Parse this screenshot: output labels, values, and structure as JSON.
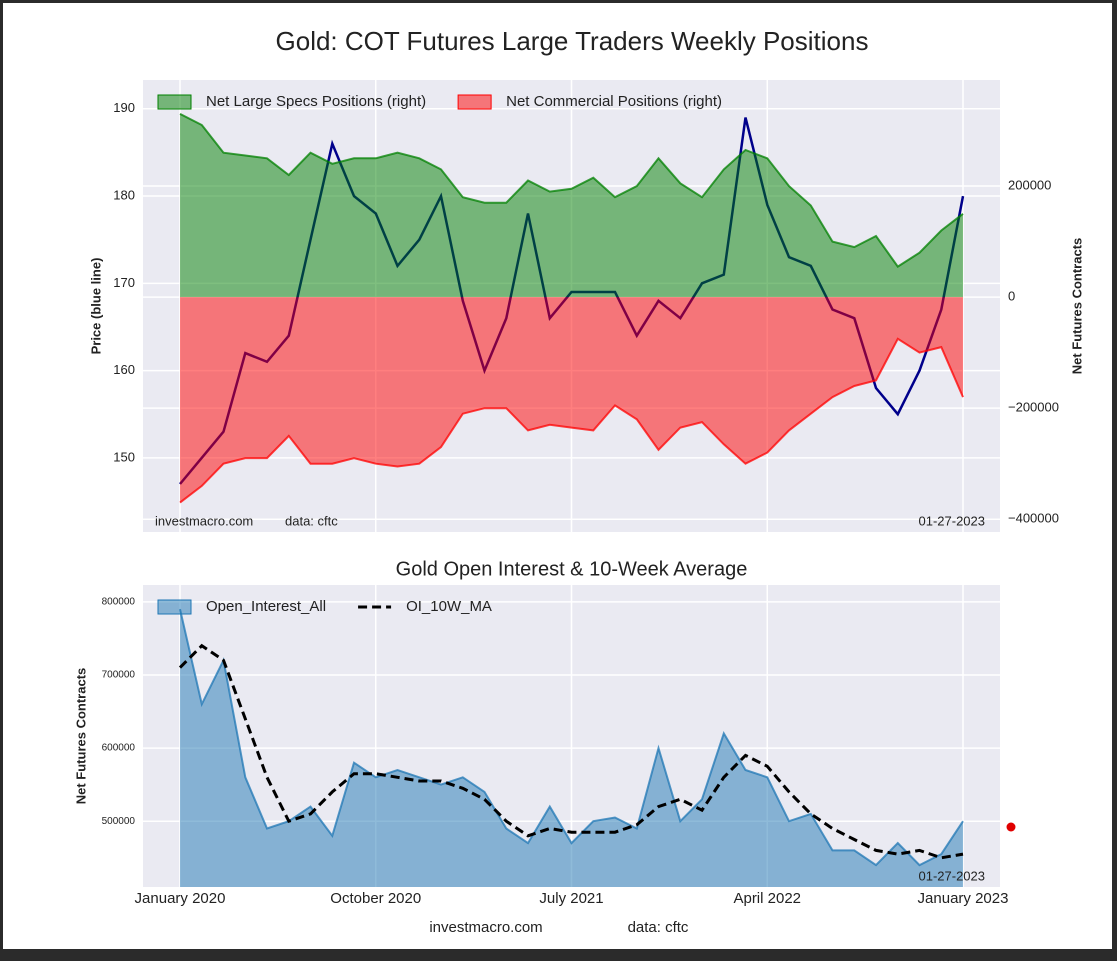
{
  "title": "Gold: COT Futures Large Traders Weekly Positions",
  "footer": {
    "site": "investmacro.com",
    "source": "data: cftc"
  },
  "chart_data": [
    {
      "type": "area",
      "x": [
        "2020-01",
        "2020-02",
        "2020-03",
        "2020-04",
        "2020-05",
        "2020-06",
        "2020-07",
        "2020-08",
        "2020-09",
        "2020-10",
        "2020-11",
        "2020-12",
        "2021-01",
        "2021-02",
        "2021-03",
        "2021-04",
        "2021-05",
        "2021-06",
        "2021-07",
        "2021-08",
        "2021-09",
        "2021-10",
        "2021-11",
        "2021-12",
        "2022-01",
        "2022-02",
        "2022-03",
        "2022-04",
        "2022-05",
        "2022-06",
        "2022-07",
        "2022-08",
        "2022-09",
        "2022-10",
        "2022-11",
        "2022-12",
        "2023-01"
      ],
      "ylabel": "Price (blue line)",
      "y2label": "Net Futures Contracts",
      "annotations": [
        "investmacro.com",
        "data: cftc",
        "01-27-2023"
      ],
      "ylim": [
        141.5,
        193.3
      ],
      "yticks": [
        150,
        160,
        170,
        180,
        190
      ],
      "y2lim": [
        -423000,
        391000
      ],
      "y2ticks": [
        {
          "value": -400000,
          "label": "−400000"
        },
        {
          "value": -200000,
          "label": "−200000"
        },
        0,
        200000
      ],
      "grid": true,
      "legend": "upper left",
      "xticks": [
        {
          "value": "2020-01",
          "label": "January 2020"
        },
        {
          "value": "2020-10",
          "label": "October 2020"
        },
        {
          "value": "2021-07",
          "label": "July 2021"
        },
        {
          "value": "2022-04",
          "label": "April 2022"
        },
        {
          "value": "2023-01",
          "label": "January 2023"
        }
      ],
      "series": [
        {
          "style": "line",
          "color": "#00008b",
          "axis": "y",
          "values": [
            147,
            150,
            153,
            162,
            161,
            164,
            175,
            186,
            180,
            178,
            172,
            175,
            180,
            168,
            160,
            166,
            178,
            166,
            169,
            169,
            169,
            164,
            168,
            166,
            170,
            171,
            189,
            179,
            173,
            172,
            167,
            166,
            158,
            155,
            160,
            167,
            180
          ]
        },
        {
          "name": "Net Large Specs Positions (right)",
          "style": "area",
          "color": "#008000",
          "axis": "y2",
          "values": [
            330000,
            310000,
            260000,
            255000,
            250000,
            220000,
            260000,
            240000,
            250000,
            250000,
            260000,
            250000,
            230000,
            180000,
            170000,
            170000,
            210000,
            190000,
            195000,
            215000,
            180000,
            200000,
            250000,
            205000,
            180000,
            230000,
            265000,
            250000,
            200000,
            165000,
            100000,
            90000,
            110000,
            55000,
            80000,
            120000,
            150000
          ]
        },
        {
          "name": "Net Commercial Positions (right)",
          "style": "area",
          "color": "#ff0000",
          "axis": "y2",
          "values": [
            -370000,
            -340000,
            -300000,
            -290000,
            -290000,
            -250000,
            -300000,
            -300000,
            -290000,
            -300000,
            -305000,
            -300000,
            -270000,
            -210000,
            -200000,
            -200000,
            -240000,
            -230000,
            -235000,
            -240000,
            -195000,
            -220000,
            -275000,
            -235000,
            -225000,
            -265000,
            -300000,
            -280000,
            -240000,
            -210000,
            -180000,
            -160000,
            -150000,
            -75000,
            -100000,
            -90000,
            -180000
          ]
        }
      ]
    },
    {
      "type": "area",
      "title": "Gold Open Interest & 10-Week Average",
      "x": [
        "2020-01",
        "2020-02",
        "2020-03",
        "2020-04",
        "2020-05",
        "2020-06",
        "2020-07",
        "2020-08",
        "2020-09",
        "2020-10",
        "2020-11",
        "2020-12",
        "2021-01",
        "2021-02",
        "2021-03",
        "2021-04",
        "2021-05",
        "2021-06",
        "2021-07",
        "2021-08",
        "2021-09",
        "2021-10",
        "2021-11",
        "2021-12",
        "2022-01",
        "2022-02",
        "2022-03",
        "2022-04",
        "2022-05",
        "2022-06",
        "2022-07",
        "2022-08",
        "2022-09",
        "2022-10",
        "2022-11",
        "2022-12",
        "2023-01"
      ],
      "ylabel": "Net Futures Contracts",
      "annotations": [
        "01-27-2023"
      ],
      "ylim": [
        410000,
        823000
      ],
      "yticks": [
        500000,
        600000,
        700000,
        800000
      ],
      "grid": true,
      "legend": "upper left",
      "xticks": [
        {
          "value": "2020-01",
          "label": "January 2020"
        },
        {
          "value": "2020-10",
          "label": "October 2020"
        },
        {
          "value": "2021-07",
          "label": "July 2021"
        },
        {
          "value": "2022-04",
          "label": "April 2022"
        },
        {
          "value": "2023-01",
          "label": "January 2023"
        }
      ],
      "series": [
        {
          "name": "Open_Interest_All",
          "style": "area",
          "color": "#1f77b4",
          "axis": "y",
          "values": [
            790000,
            660000,
            720000,
            560000,
            490000,
            500000,
            520000,
            480000,
            580000,
            560000,
            570000,
            560000,
            550000,
            560000,
            540000,
            490000,
            470000,
            520000,
            470000,
            500000,
            505000,
            490000,
            600000,
            500000,
            530000,
            620000,
            570000,
            560000,
            500000,
            510000,
            460000,
            460000,
            440000,
            470000,
            440000,
            455000,
            500000
          ]
        },
        {
          "name": "OI_10W_MA",
          "style": "dashed",
          "color": "#000000",
          "axis": "y",
          "values": [
            710000,
            740000,
            720000,
            640000,
            560000,
            500000,
            510000,
            540000,
            565000,
            565000,
            560000,
            555000,
            555000,
            545000,
            530000,
            500000,
            480000,
            490000,
            485000,
            485000,
            485000,
            495000,
            520000,
            530000,
            515000,
            560000,
            590000,
            575000,
            540000,
            510000,
            490000,
            475000,
            460000,
            455000,
            460000,
            450000,
            455000
          ]
        }
      ]
    }
  ]
}
